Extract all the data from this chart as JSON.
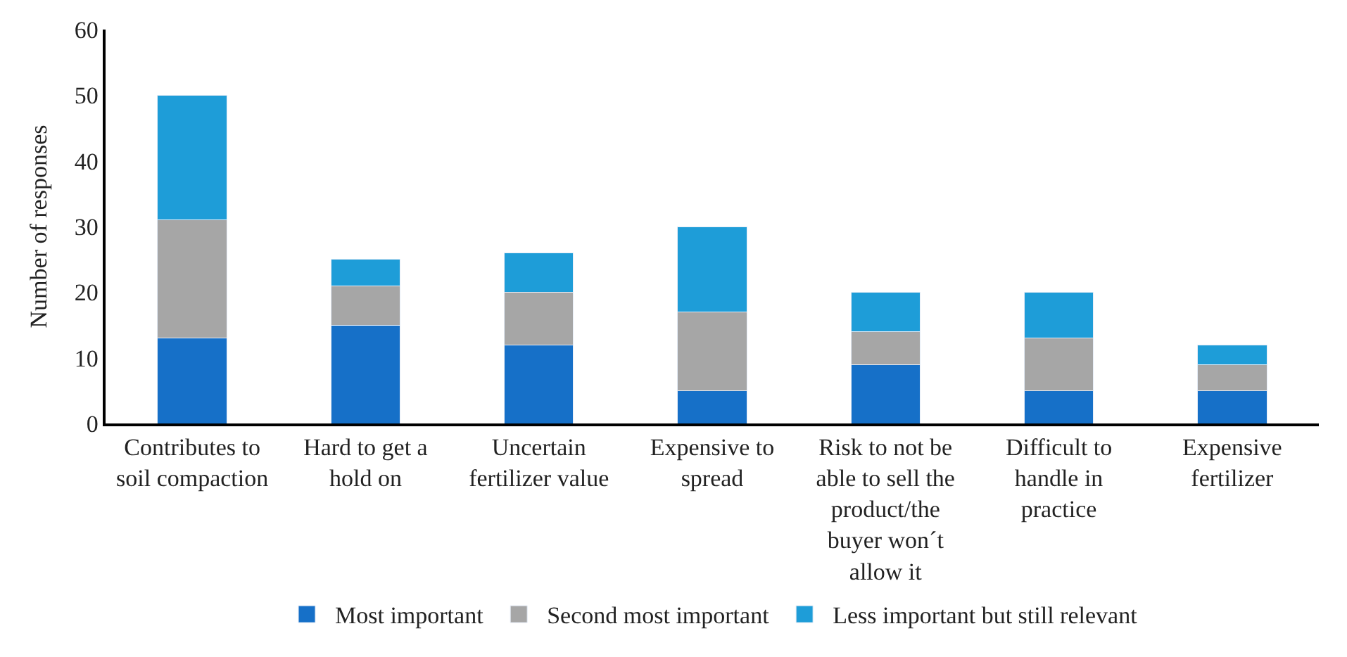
{
  "chart_data": {
    "type": "bar",
    "stacked": true,
    "ylabel": "Number of responses",
    "categories": [
      "Contributes to soil compaction",
      "Hard to get a hold on",
      "Uncertain fertilizer value",
      "Expensive to spread",
      "Risk to not be able to sell the product/the buyer won´t allow it",
      "Difficult to handle in practice",
      "Expensive fertilizer"
    ],
    "series": [
      {
        "name": "Most important",
        "color": "#1670c8",
        "values": [
          13,
          15,
          12,
          5,
          9,
          5,
          5
        ]
      },
      {
        "name": "Second most important",
        "color": "#a6a6a6",
        "values": [
          18,
          6,
          8,
          12,
          5,
          8,
          4
        ]
      },
      {
        "name": "Less important but still relevant",
        "color": "#1e9dd8",
        "values": [
          19,
          4,
          6,
          13,
          6,
          7,
          3
        ]
      }
    ],
    "ylim": [
      0,
      60
    ],
    "yticks": [
      0,
      10,
      20,
      30,
      40,
      50,
      60
    ],
    "legend": "bottom"
  }
}
